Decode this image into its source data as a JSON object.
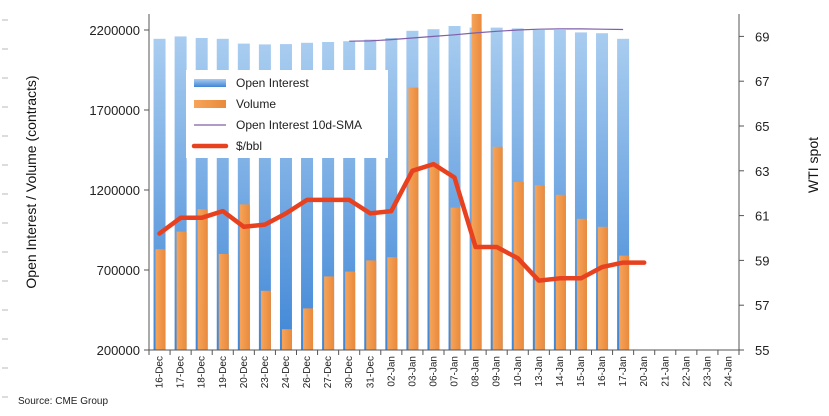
{
  "chart_data": {
    "type": "bar",
    "ylabel": "Open Interest / Volume (contracts)",
    "y2label": "WTI spot",
    "source": "Source: CME Group",
    "ylim": [
      200000,
      2300000
    ],
    "yticks": [
      200000,
      700000,
      1200000,
      1700000,
      2200000
    ],
    "y2lim": [
      55,
      70
    ],
    "y2ticks": [
      55,
      57,
      59,
      61,
      63,
      65,
      67,
      69
    ],
    "grid": false,
    "legend_position": "upper-left inside",
    "categories": [
      "16-Dec",
      "17-Dec",
      "18-Dec",
      "19-Dec",
      "20-Dec",
      "23-Dec",
      "24-Dec",
      "26-Dec",
      "27-Dec",
      "30-Dec",
      "31-Dec",
      "02-Jan",
      "03-Jan",
      "06-Jan",
      "07-Jan",
      "08-Jan",
      "09-Jan",
      "10-Jan",
      "13-Jan",
      "14-Jan",
      "15-Jan",
      "16-Jan",
      "17-Jan",
      "20-Jan",
      "21-Jan",
      "22-Jan",
      "23-Jan",
      "24-Jan"
    ],
    "series": [
      {
        "name": "Open Interest",
        "type": "bar",
        "axis": "left",
        "color": "#5b9bd5",
        "values": [
          2145000,
          2160000,
          2150000,
          2145000,
          2115000,
          2110000,
          2112000,
          2120000,
          2125000,
          2130000,
          2140000,
          2150000,
          2195000,
          2205000,
          2225000,
          2215000,
          2215000,
          2210000,
          2200000,
          2200000,
          2185000,
          2180000,
          2145000,
          null,
          null,
          null,
          null,
          null
        ]
      },
      {
        "name": "Volume",
        "type": "bar",
        "axis": "left",
        "color": "#f0944a",
        "values": [
          830000,
          940000,
          1080000,
          800000,
          1110000,
          570000,
          330000,
          460000,
          660000,
          690000,
          760000,
          780000,
          1840000,
          1370000,
          1090000,
          2300000,
          1470000,
          1250000,
          1230000,
          1170000,
          1020000,
          970000,
          790000,
          null,
          null,
          null,
          null,
          null
        ]
      },
      {
        "name": "Open Interest 10d-SMA",
        "type": "line",
        "axis": "left",
        "color": "#7f5fa8",
        "values": [
          null,
          null,
          null,
          null,
          null,
          null,
          null,
          null,
          null,
          2130000,
          2132000,
          2140000,
          2150000,
          2160000,
          2170000,
          2182000,
          2192000,
          2200000,
          2205000,
          2207000,
          2207000,
          2205000,
          2203000,
          null,
          null,
          null,
          null,
          null
        ]
      },
      {
        "name": "$/bbl",
        "type": "line",
        "axis": "right",
        "color": "#e8411f",
        "values": [
          60.2,
          60.9,
          60.9,
          61.2,
          60.5,
          60.6,
          61.1,
          61.7,
          61.7,
          61.7,
          61.1,
          61.2,
          63.0,
          63.3,
          62.7,
          59.6,
          59.6,
          59.1,
          58.1,
          58.2,
          58.2,
          58.7,
          58.9,
          58.9,
          null,
          null,
          null,
          null
        ]
      }
    ]
  }
}
